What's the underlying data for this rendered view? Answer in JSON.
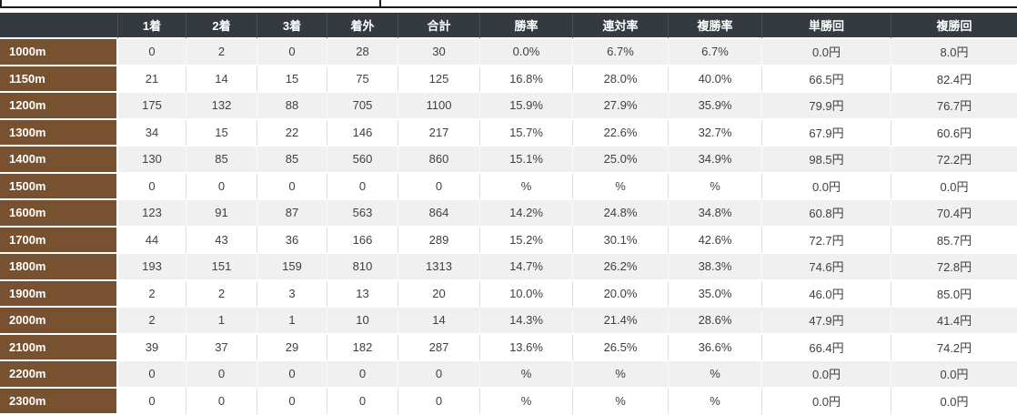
{
  "colors": {
    "header_bg": "#343a40",
    "header_text": "#ffffff",
    "row_label_bg": "#775130",
    "row_label_text": "#ffffff",
    "row_alt_bg": "#f0f0f0",
    "row_bg": "#ffffff",
    "data_text": "#404040",
    "top_rule": "#1a1a1a"
  },
  "table": {
    "columns": [
      "",
      "1着",
      "2着",
      "3着",
      "着外",
      "合計",
      "勝率",
      "連対率",
      "複勝率",
      "単勝回",
      "複勝回"
    ],
    "rows": [
      {
        "label": "1000m",
        "cells": [
          "0",
          "2",
          "0",
          "28",
          "30",
          "0.0%",
          "6.7%",
          "6.7%",
          "0.0円",
          "8.0円"
        ]
      },
      {
        "label": "1150m",
        "cells": [
          "21",
          "14",
          "15",
          "75",
          "125",
          "16.8%",
          "28.0%",
          "40.0%",
          "66.5円",
          "82.4円"
        ]
      },
      {
        "label": "1200m",
        "cells": [
          "175",
          "132",
          "88",
          "705",
          "1100",
          "15.9%",
          "27.9%",
          "35.9%",
          "79.9円",
          "76.7円"
        ]
      },
      {
        "label": "1300m",
        "cells": [
          "34",
          "15",
          "22",
          "146",
          "217",
          "15.7%",
          "22.6%",
          "32.7%",
          "67.9円",
          "60.6円"
        ]
      },
      {
        "label": "1400m",
        "cells": [
          "130",
          "85",
          "85",
          "560",
          "860",
          "15.1%",
          "25.0%",
          "34.9%",
          "98.5円",
          "72.2円"
        ]
      },
      {
        "label": "1500m",
        "cells": [
          "0",
          "0",
          "0",
          "0",
          "0",
          "%",
          "%",
          "%",
          "0.0円",
          "0.0円"
        ]
      },
      {
        "label": "1600m",
        "cells": [
          "123",
          "91",
          "87",
          "563",
          "864",
          "14.2%",
          "24.8%",
          "34.8%",
          "60.8円",
          "70.4円"
        ]
      },
      {
        "label": "1700m",
        "cells": [
          "44",
          "43",
          "36",
          "166",
          "289",
          "15.2%",
          "30.1%",
          "42.6%",
          "72.7円",
          "85.7円"
        ]
      },
      {
        "label": "1800m",
        "cells": [
          "193",
          "151",
          "159",
          "810",
          "1313",
          "14.7%",
          "26.2%",
          "38.3%",
          "74.6円",
          "72.8円"
        ]
      },
      {
        "label": "1900m",
        "cells": [
          "2",
          "2",
          "3",
          "13",
          "20",
          "10.0%",
          "20.0%",
          "35.0%",
          "46.0円",
          "85.0円"
        ]
      },
      {
        "label": "2000m",
        "cells": [
          "2",
          "1",
          "1",
          "10",
          "14",
          "14.3%",
          "21.4%",
          "28.6%",
          "47.9円",
          "41.4円"
        ]
      },
      {
        "label": "2100m",
        "cells": [
          "39",
          "37",
          "29",
          "182",
          "287",
          "13.6%",
          "26.5%",
          "36.6%",
          "66.4円",
          "74.2円"
        ]
      },
      {
        "label": "2200m",
        "cells": [
          "0",
          "0",
          "0",
          "0",
          "0",
          "%",
          "%",
          "%",
          "0.0円",
          "0.0円"
        ]
      },
      {
        "label": "2300m",
        "cells": [
          "0",
          "0",
          "0",
          "0",
          "0",
          "%",
          "%",
          "%",
          "0.0円",
          "0.0円"
        ]
      }
    ]
  }
}
